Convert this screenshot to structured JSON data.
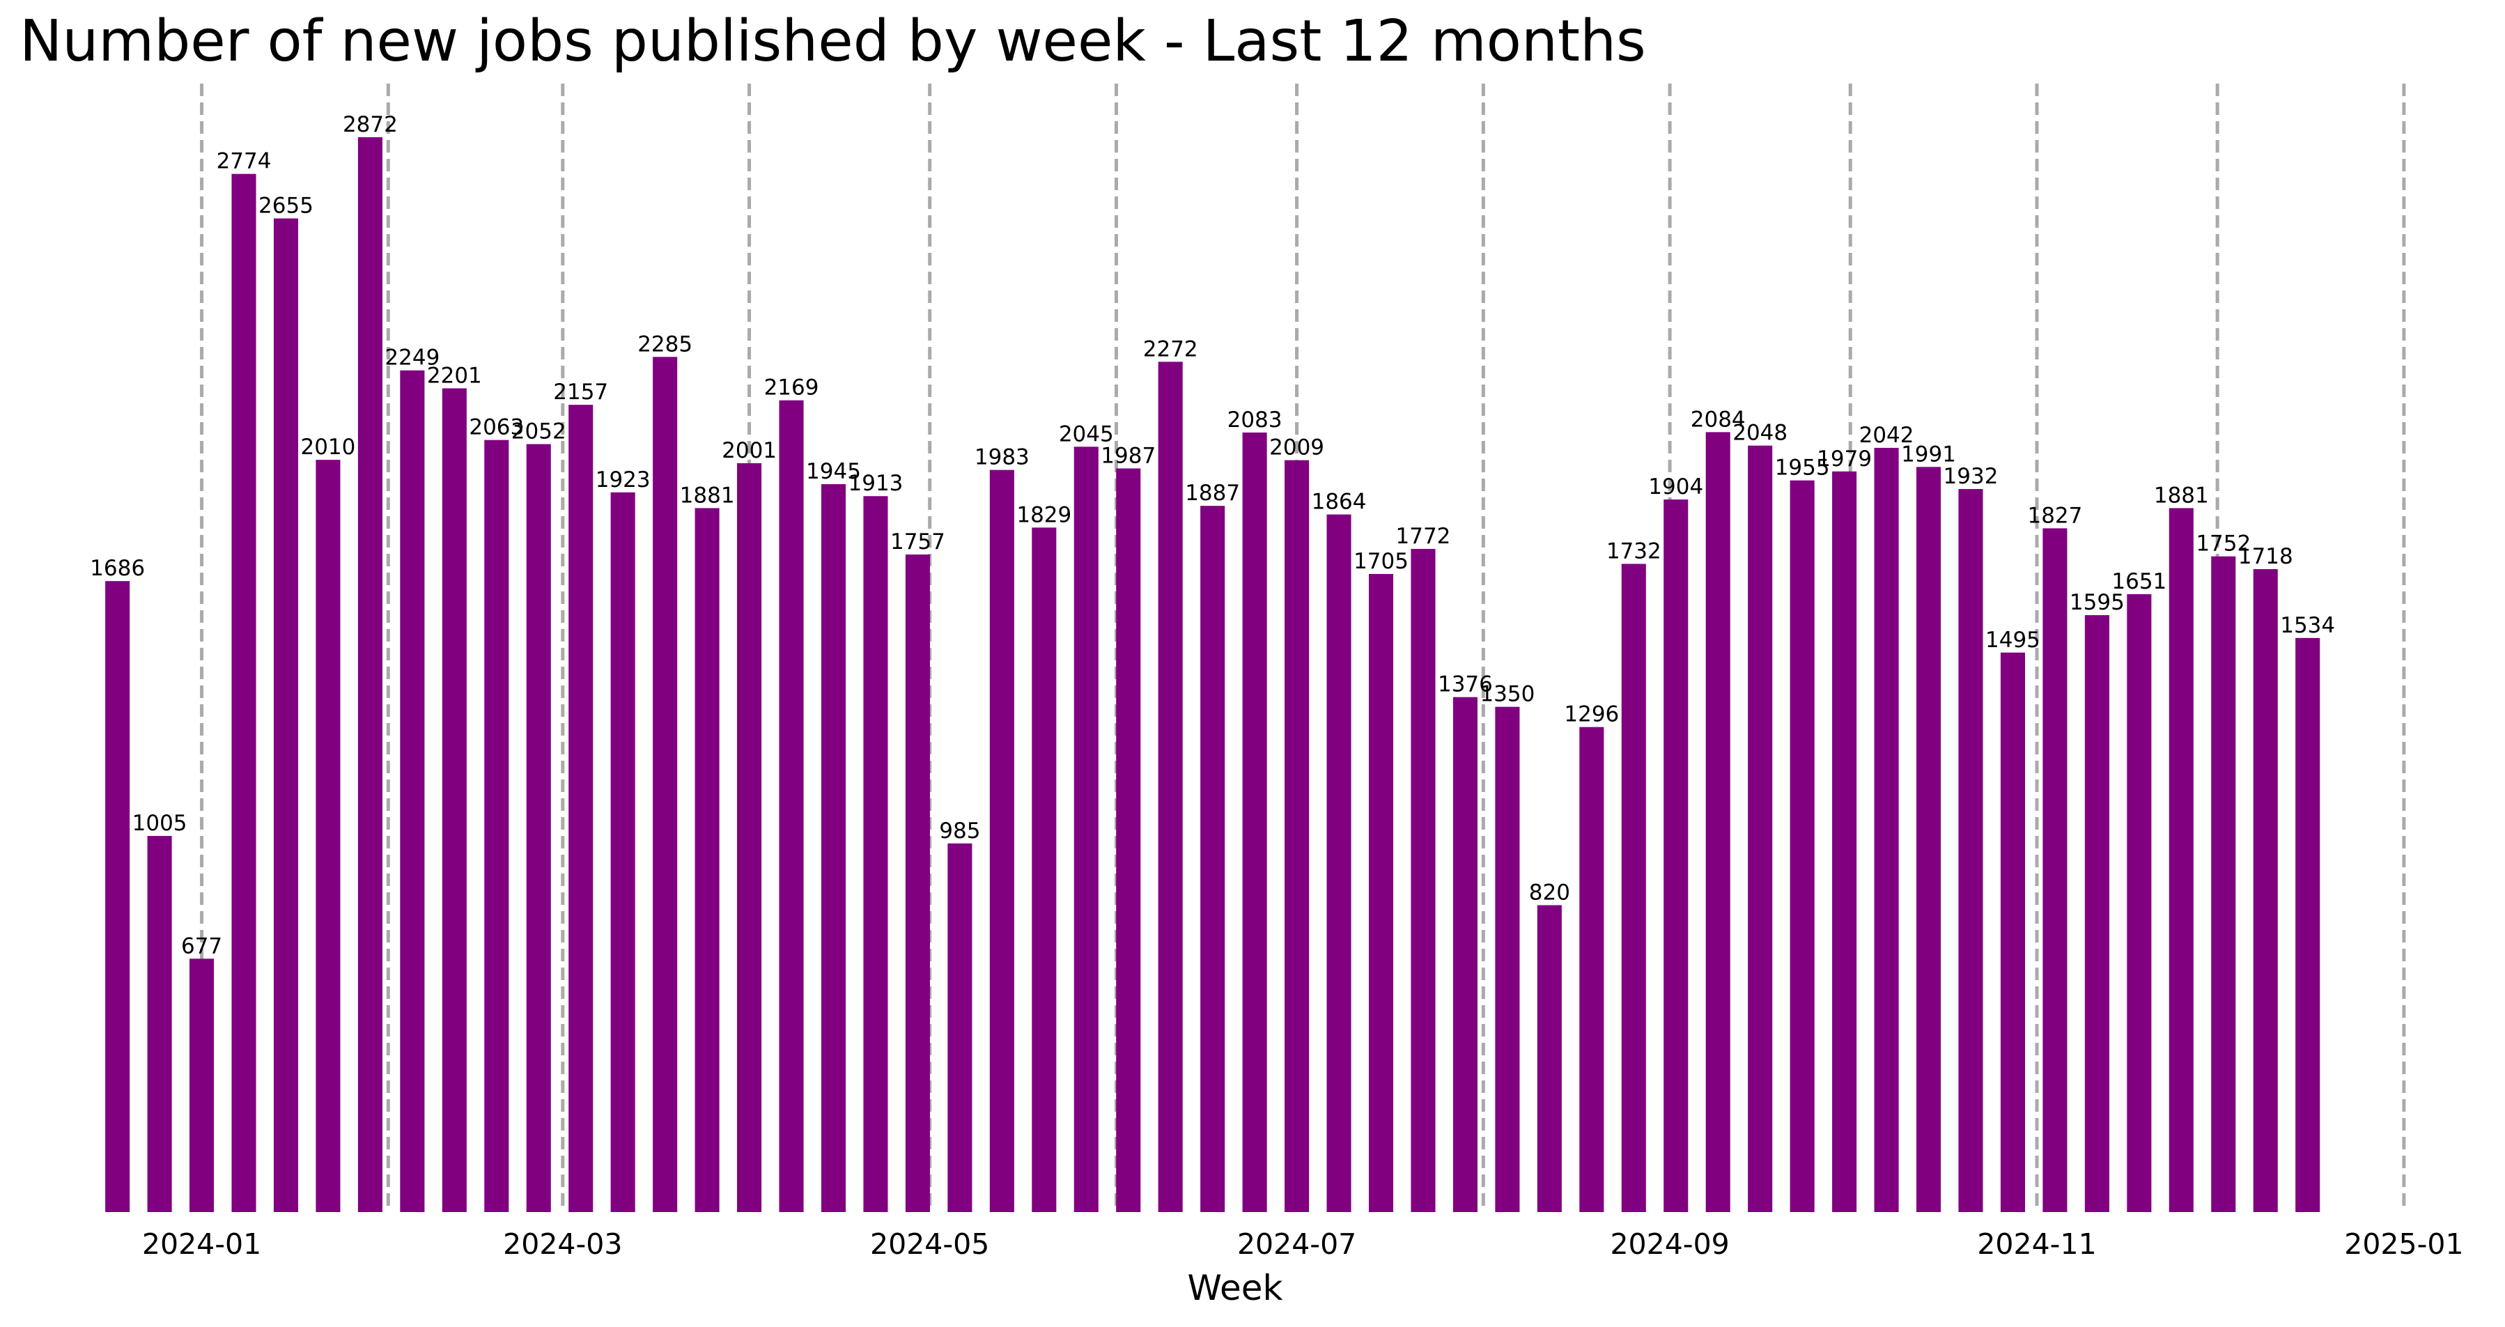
{
  "chart_data": {
    "type": "bar",
    "title": "Number of new jobs published by week - Last 12 months",
    "xlabel": "Week",
    "ylabel": "",
    "ylim": [
      0,
      2900
    ],
    "xlim": [
      "2023-12-17",
      "2025-01-09"
    ],
    "bar_color": "#800080",
    "gridline_color": "#aaaaaa",
    "gridlines": "vertical dashed lines at each labeled month boundary and the month between",
    "x_ticks": [
      "2024-01",
      "2024-03",
      "2024-05",
      "2024-07",
      "2024-09",
      "2024-11",
      "2025-01"
    ],
    "month_lines": [
      "2024-01-01",
      "2024-02-01",
      "2024-03-01",
      "2024-04-01",
      "2024-05-01",
      "2024-06-01",
      "2024-07-01",
      "2024-08-01",
      "2024-09-01",
      "2024-10-01",
      "2024-11-01",
      "2024-12-01",
      "2025-01-01"
    ],
    "categories": [
      "2023-12-18",
      "2023-12-25",
      "2024-01-01",
      "2024-01-08",
      "2024-01-15",
      "2024-01-22",
      "2024-01-29",
      "2024-02-05",
      "2024-02-12",
      "2024-02-19",
      "2024-02-26",
      "2024-03-04",
      "2024-03-11",
      "2024-03-18",
      "2024-03-25",
      "2024-04-01",
      "2024-04-08",
      "2024-04-15",
      "2024-04-22",
      "2024-04-29",
      "2024-05-06",
      "2024-05-13",
      "2024-05-20",
      "2024-05-27",
      "2024-06-03",
      "2024-06-10",
      "2024-06-17",
      "2024-06-24",
      "2024-07-01",
      "2024-07-08",
      "2024-07-15",
      "2024-07-22",
      "2024-07-29",
      "2024-08-05",
      "2024-08-12",
      "2024-08-19",
      "2024-08-26",
      "2024-09-02",
      "2024-09-09",
      "2024-09-16",
      "2024-09-23",
      "2024-09-30",
      "2024-10-07",
      "2024-10-14",
      "2024-10-21",
      "2024-10-28",
      "2024-11-04",
      "2024-11-11",
      "2024-11-18",
      "2024-11-25",
      "2024-12-02",
      "2024-12-09",
      "2024-12-16"
    ],
    "values": [
      1686,
      1005,
      677,
      2774,
      2655,
      2010,
      2872,
      2249,
      2201,
      2063,
      2052,
      2157,
      1923,
      2285,
      1881,
      2001,
      2169,
      1945,
      1913,
      1757,
      985,
      1983,
      1829,
      2045,
      1987,
      2272,
      1887,
      2083,
      2009,
      1864,
      1705,
      1772,
      1376,
      1350,
      820,
      1296,
      1732,
      1904,
      2084,
      2048,
      1955,
      1979,
      2042,
      1991,
      1932,
      1495,
      1827,
      1595,
      1651,
      1881,
      1752,
      1718,
      1534
    ]
  }
}
